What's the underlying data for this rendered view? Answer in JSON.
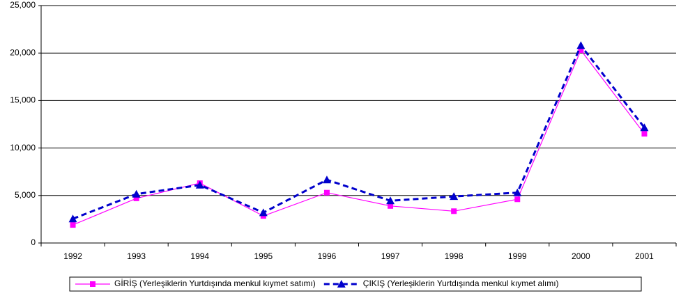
{
  "chart_data": {
    "type": "line",
    "categories": [
      "1992",
      "1993",
      "1994",
      "1995",
      "1996",
      "1997",
      "1998",
      "1999",
      "2000",
      "2001"
    ],
    "series": [
      {
        "name": "GİRİŞ (Yerleşiklerin Yurtdışında menkul kıymet satımı)",
        "color": "#ff00ff",
        "marker": "square",
        "dashed": false,
        "values": [
          1900,
          4700,
          6300,
          2850,
          5300,
          3900,
          3350,
          4600,
          20300,
          11500
        ]
      },
      {
        "name": "ÇIKIŞ (Yerleşiklerin Yurtdışında menkul kıymet alımı)",
        "color": "#0000cc",
        "marker": "triangle",
        "dashed": true,
        "values": [
          2550,
          5150,
          6100,
          3200,
          6650,
          4450,
          4900,
          5300,
          20800,
          12150
        ]
      }
    ],
    "ylim": [
      0,
      25000
    ],
    "yticks": [
      0,
      {
        "value": 5000,
        "label": "5,000"
      },
      {
        "value": 10000,
        "label": "10,000"
      },
      {
        "value": 15000,
        "label": "15,000"
      },
      {
        "value": 20000,
        "label": "20,000"
      },
      {
        "value": 25000,
        "label": "25,000"
      }
    ],
    "grid": true,
    "legend": "bottom"
  }
}
